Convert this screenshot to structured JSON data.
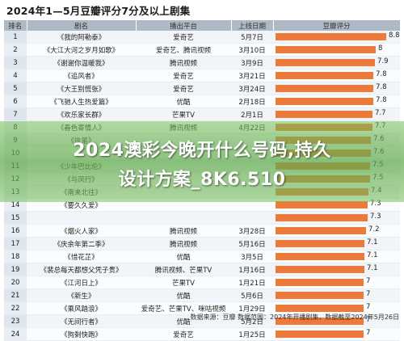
{
  "title": "2024年1—5月豆瓣评分7分及以上剧集",
  "columns": [
    "排名",
    "剧名",
    "播出平台",
    "上线日期",
    "豆瓣评分"
  ],
  "rows": [
    {
      "rank": "1",
      "name": "《我的阿勒泰》",
      "platform": "爱奇艺",
      "date": "5月7日",
      "score": 8.8,
      "score_label": "8.8"
    },
    {
      "rank": "2",
      "name": "《大江大河之岁月如歌》",
      "platform": "爱奇艺、腾讯视频",
      "date": "3月10日",
      "score": 8.0,
      "score_label": "8"
    },
    {
      "rank": "3",
      "name": "《谢谢你温暖我》",
      "platform": "腾讯视频",
      "date": "3月9日",
      "score": 7.9,
      "score_label": "7.9"
    },
    {
      "rank": "4",
      "name": "《追风者》",
      "platform": "爱奇艺",
      "date": "3月21日",
      "score": 7.8,
      "score_label": "7.8"
    },
    {
      "rank": "5",
      "name": "《大王别慌张》",
      "platform": "爱奇艺",
      "date": "3月24日",
      "score": 7.8,
      "score_label": "7.8"
    },
    {
      "rank": "6",
      "name": "《飞驰人生热爱篇》",
      "platform": "优酷",
      "date": "2月18日",
      "score": 7.8,
      "score_label": "7.8"
    },
    {
      "rank": "7",
      "name": "《欢乐家长群》",
      "platform": "芒果TV",
      "date": "2月1日",
      "score": 7.7,
      "score_label": "7.7"
    },
    {
      "rank": "8",
      "name": "《春色寄情人》",
      "platform": "腾讯视频",
      "date": "4月22日",
      "score": 7.7,
      "score_label": "7.7"
    },
    {
      "rank": "9",
      "name": "《执笔》",
      "platform": "",
      "date": "",
      "score": 7.6,
      "score_label": "7.6"
    },
    {
      "rank": "10",
      "name": "",
      "platform": "",
      "date": "",
      "score": 7.6,
      "score_label": "7.6"
    },
    {
      "rank": "11",
      "name": "《少年巴比伦》",
      "platform": "",
      "date": "",
      "score": 7.5,
      "score_label": "7.5"
    },
    {
      "rank": "12",
      "name": "《与凤行》",
      "platform": "",
      "date": "",
      "score": 7.5,
      "score_label": "7.5"
    },
    {
      "rank": "13",
      "name": "《南来北往》",
      "platform": "",
      "date": "",
      "score": 7.4,
      "score_label": "7.4"
    },
    {
      "rank": "14",
      "name": "《要久久爱》",
      "platform": "",
      "date": "",
      "score": 7.3,
      "score_label": "7.3"
    },
    {
      "rank": "15",
      "name": "",
      "platform": "",
      "date": "",
      "score": 7.3,
      "score_label": "7.3"
    },
    {
      "rank": "16",
      "name": "《烟火人家》",
      "platform": "腾讯视频",
      "date": "3月28日",
      "score": 7.2,
      "score_label": "7.2"
    },
    {
      "rank": "17",
      "name": "《庆余年第二季》",
      "platform": "腾讯视频",
      "date": "5月16日",
      "score": 7.1,
      "score_label": "7.1"
    },
    {
      "rank": "18",
      "name": "《惜花芷》",
      "platform": "优酷",
      "date": "3月5日",
      "score": 7.1,
      "score_label": "7.1"
    },
    {
      "rank": "19",
      "name": "《裴总每天都想父凭子贵》",
      "platform": "腾讯视频、芒果TV",
      "date": "1月16日",
      "score": 7.1,
      "score_label": "7.1"
    },
    {
      "rank": "20",
      "name": "《江河日上》",
      "platform": "芒果TV",
      "date": "1月21日",
      "score": 7.0,
      "score_label": "7"
    },
    {
      "rank": "21",
      "name": "《新生》",
      "platform": "优酷",
      "date": "5月6日",
      "score": 7.0,
      "score_label": "7"
    },
    {
      "rank": "22",
      "name": "《乘风踏浪》",
      "platform": "爱奇艺、芒果TV、咪咕视频",
      "date": "1月29日",
      "score": 7.0,
      "score_label": "7"
    },
    {
      "rank": "23",
      "name": "《无间行者》",
      "platform": "优酷",
      "date": "5月2日",
      "score": 7.0,
      "score_label": "7"
    },
    {
      "rank": "24",
      "name": "《狗剩快跑》",
      "platform": "爱奇艺",
      "date": "1月25日",
      "score": 7.0,
      "score_label": "7"
    }
  ],
  "overlay_line1": "2024澳彩今晚开什么号码,持久",
  "overlay_line2": "设计方案_8K6.510",
  "source_note": "数据来源：豆瓣  数据范围：2024年开播剧集，数据截至2024年5月26日",
  "colors": {
    "bar": "#ee7a3a",
    "header": "#aeb9c6",
    "overlay": "#6fb24f"
  },
  "score_axis_max": 9.0
}
